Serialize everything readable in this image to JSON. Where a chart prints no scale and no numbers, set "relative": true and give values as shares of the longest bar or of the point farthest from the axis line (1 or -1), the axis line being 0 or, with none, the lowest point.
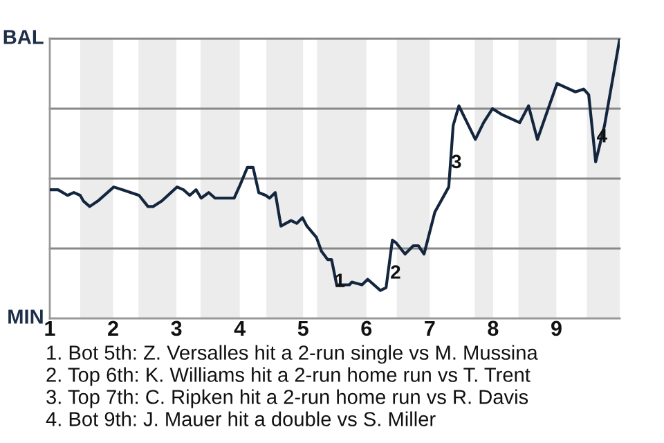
{
  "chart_data": {
    "type": "line",
    "x": [
      1,
      1.13,
      1.28,
      1.38,
      1.48,
      1.53,
      1.63,
      1.76,
      2.01,
      2.15,
      2.41,
      2.55,
      2.63,
      2.77,
      3.01,
      3.11,
      3.21,
      3.31,
      3.39,
      3.51,
      3.61,
      3.91,
      4.01,
      4.12,
      4.21,
      4.3,
      4.41,
      4.47,
      4.56,
      4.65,
      4.81,
      4.9,
      4.99,
      5.06,
      5.21,
      5.29,
      5.39,
      5.45,
      5.53,
      5.73,
      5.77,
      5.93,
      6.02,
      6.22,
      6.31,
      6.41,
      6.47,
      6.61,
      6.74,
      6.82,
      6.91,
      7.08,
      7.3,
      7.37,
      7.46,
      7.72,
      7.85,
      7.99,
      8.13,
      8.42,
      8.56,
      8.7,
      9.01,
      9.3,
      9.43,
      9.51,
      9.62,
      9.76,
      10
    ],
    "series": [
      {
        "color": "#14263d",
        "values": [
          0.46,
          0.46,
          0.44,
          0.45,
          0.44,
          0.42,
          0.4,
          0.42,
          0.47,
          0.46,
          0.44,
          0.4,
          0.4,
          0.42,
          0.47,
          0.46,
          0.44,
          0.46,
          0.43,
          0.45,
          0.43,
          0.43,
          0.48,
          0.54,
          0.54,
          0.45,
          0.44,
          0.43,
          0.45,
          0.33,
          0.35,
          0.34,
          0.36,
          0.33,
          0.29,
          0.24,
          0.21,
          0.21,
          0.12,
          0.12,
          0.13,
          0.12,
          0.14,
          0.1,
          0.11,
          0.28,
          0.27,
          0.23,
          0.26,
          0.26,
          0.23,
          0.38,
          0.47,
          0.69,
          0.76,
          0.64,
          0.7,
          0.75,
          0.73,
          0.7,
          0.76,
          0.64,
          0.84,
          0.81,
          0.82,
          0.8,
          0.56,
          0.69,
          1
        ]
      }
    ],
    "xlim": [
      1,
      10
    ],
    "xticks": [
      1,
      2,
      3,
      4,
      5,
      6,
      7,
      8,
      9
    ],
    "relative": true,
    "bands": [
      {
        "axis": "x",
        "from": 1.48,
        "to": 2,
        "color": "#ececec"
      },
      {
        "axis": "x",
        "from": 2.4,
        "to": 3,
        "color": "#ececec"
      },
      {
        "axis": "x",
        "from": 3.38,
        "to": 4,
        "color": "#ececec"
      },
      {
        "axis": "x",
        "from": 4.42,
        "to": 5,
        "color": "#ececec"
      },
      {
        "axis": "x",
        "from": 5.22,
        "to": 6,
        "color": "#ececec"
      },
      {
        "axis": "x",
        "from": 6.48,
        "to": 7,
        "color": "#ececec"
      },
      {
        "axis": "x",
        "from": 7.71,
        "to": 8,
        "color": "#ececec"
      },
      {
        "axis": "x",
        "from": 8.4,
        "to": 9,
        "color": "#ececec"
      },
      {
        "axis": "x",
        "from": 9.48,
        "to": 10,
        "color": "#ececec"
      }
    ],
    "ref_lines": [
      {
        "axis": "y",
        "value": 0,
        "label": "MIN",
        "color": "#999999"
      },
      {
        "axis": "y",
        "value": 0.25,
        "color": "#888888"
      },
      {
        "axis": "y",
        "value": 0.5,
        "color": "#888888"
      },
      {
        "axis": "y",
        "value": 0.75,
        "color": "#888888"
      },
      {
        "axis": "y",
        "value": 1,
        "label": "BAL",
        "color": "#888888"
      }
    ],
    "annotations": [
      {
        "text": "1",
        "x": 5.58,
        "y": 0.13
      },
      {
        "text": "2",
        "x": 6.46,
        "y": 0.16
      },
      {
        "text": "3",
        "x": 7.42,
        "y": 0.555
      },
      {
        "text": "4",
        "x": 9.72,
        "y": 0.648
      },
      "1. Bot 5th: Z. Versalles hit a 2-run single vs M. Mussina",
      "2. Top 6th: K. Williams hit a 2-run home run vs T. Trent",
      "3. Top 7th: C. Ripken hit a 2-run home run vs R. Davis",
      "4. Bot 9th: J. Mauer hit a double vs S. Miller"
    ]
  }
}
